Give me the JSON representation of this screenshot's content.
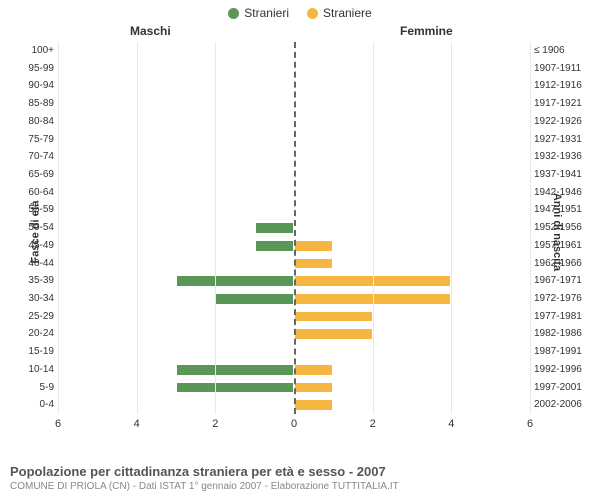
{
  "legend": {
    "male": {
      "label": "Stranieri",
      "color": "#5a9657"
    },
    "female": {
      "label": "Straniere",
      "color": "#f5b742"
    }
  },
  "headers": {
    "left": "Maschi",
    "right": "Femmine"
  },
  "axis_titles": {
    "left": "Fasce di età",
    "right": "Anni di nascita"
  },
  "x": {
    "min": 0,
    "max": 6,
    "ticks": [
      0,
      2,
      4,
      6
    ]
  },
  "colors": {
    "male_bar": "#5a9657",
    "female_bar": "#f5b742",
    "bar_border": "#ffffff",
    "grid": "#e8e8e8",
    "center": "#666666"
  },
  "rows": [
    {
      "age": "100+",
      "birth": "≤ 1906",
      "m": 0,
      "f": 0
    },
    {
      "age": "95-99",
      "birth": "1907-1911",
      "m": 0,
      "f": 0
    },
    {
      "age": "90-94",
      "birth": "1912-1916",
      "m": 0,
      "f": 0
    },
    {
      "age": "85-89",
      "birth": "1917-1921",
      "m": 0,
      "f": 0
    },
    {
      "age": "80-84",
      "birth": "1922-1926",
      "m": 0,
      "f": 0
    },
    {
      "age": "75-79",
      "birth": "1927-1931",
      "m": 0,
      "f": 0
    },
    {
      "age": "70-74",
      "birth": "1932-1936",
      "m": 0,
      "f": 0
    },
    {
      "age": "65-69",
      "birth": "1937-1941",
      "m": 0,
      "f": 0
    },
    {
      "age": "60-64",
      "birth": "1942-1946",
      "m": 0,
      "f": 0
    },
    {
      "age": "55-59",
      "birth": "1947-1951",
      "m": 0,
      "f": 0
    },
    {
      "age": "50-54",
      "birth": "1952-1956",
      "m": 1,
      "f": 0
    },
    {
      "age": "45-49",
      "birth": "1957-1961",
      "m": 1,
      "f": 1
    },
    {
      "age": "40-44",
      "birth": "1962-1966",
      "m": 0,
      "f": 1
    },
    {
      "age": "35-39",
      "birth": "1967-1971",
      "m": 3,
      "f": 4
    },
    {
      "age": "30-34",
      "birth": "1972-1976",
      "m": 2,
      "f": 4
    },
    {
      "age": "25-29",
      "birth": "1977-1981",
      "m": 0,
      "f": 2
    },
    {
      "age": "20-24",
      "birth": "1982-1986",
      "m": 0,
      "f": 2
    },
    {
      "age": "15-19",
      "birth": "1987-1991",
      "m": 0,
      "f": 0
    },
    {
      "age": "10-14",
      "birth": "1992-1996",
      "m": 3,
      "f": 1
    },
    {
      "age": "5-9",
      "birth": "1997-2001",
      "m": 3,
      "f": 1
    },
    {
      "age": "0-4",
      "birth": "2002-2006",
      "m": 0,
      "f": 1
    }
  ],
  "footer": {
    "title": "Popolazione per cittadinanza straniera per età e sesso - 2007",
    "subtitle": "COMUNE DI PRIOLA (CN) - Dati ISTAT 1° gennaio 2007 - Elaborazione TUTTITALIA.IT"
  }
}
